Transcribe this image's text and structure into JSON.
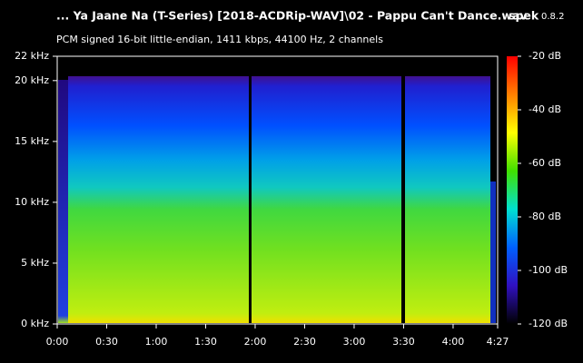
{
  "chart_data": {
    "type": "spectrogram",
    "title": "... Ya Jaane Na (T-Series) [2018-ACDRip-WAV]\\02 - Pappu Can't Dance.wav",
    "app_name": "spek",
    "app_version": "0.8.2",
    "subtitle": "PCM signed 16-bit little-endian, 1411 kbps, 44100 Hz, 2 channels",
    "xlim": [
      0,
      267
    ],
    "xticks": [
      {
        "value": 0,
        "label": "0:00"
      },
      {
        "value": 30,
        "label": "0:30"
      },
      {
        "value": 60,
        "label": "1:00"
      },
      {
        "value": 90,
        "label": "1:30"
      },
      {
        "value": 120,
        "label": "2:00"
      },
      {
        "value": 150,
        "label": "2:30"
      },
      {
        "value": 180,
        "label": "3:00"
      },
      {
        "value": 210,
        "label": "3:30"
      },
      {
        "value": 240,
        "label": "4:00"
      },
      {
        "value": 267,
        "label": "4:27"
      }
    ],
    "ylim": [
      0,
      22
    ],
    "yticks": [
      {
        "value": 0,
        "label": "0 kHz"
      },
      {
        "value": 5,
        "label": "5 kHz"
      },
      {
        "value": 10,
        "label": "10 kHz"
      },
      {
        "value": 15,
        "label": "15 kHz"
      },
      {
        "value": 20,
        "label": "20 kHz"
      },
      {
        "value": 22,
        "label": "22 kHz"
      }
    ],
    "zlim": [
      -120,
      -20
    ],
    "zticks": [
      {
        "value": -20,
        "label": "-20 dB"
      },
      {
        "value": -40,
        "label": "-40 dB"
      },
      {
        "value": -60,
        "label": "-60 dB"
      },
      {
        "value": -80,
        "label": "-80 dB"
      },
      {
        "value": -100,
        "label": "-100 dB"
      },
      {
        "value": -120,
        "label": "-120 dB"
      }
    ],
    "colormap": [
      "#ff0000",
      "#ff8000",
      "#ffff00",
      "#40e000",
      "#00e0d0",
      "#0060ff",
      "#3010c0",
      "#000000"
    ]
  }
}
